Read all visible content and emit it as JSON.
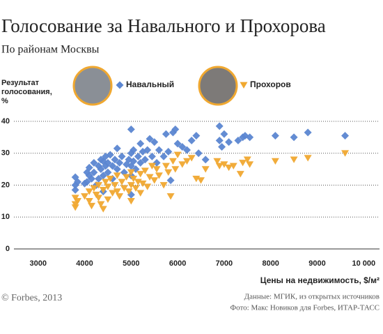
{
  "chart_data": {
    "type": "scatter",
    "title": "Голосование за Навального и Прохорова",
    "subtitle": "По районам Москвы",
    "y_label": "Результат голосования, %",
    "x_label": "Цены на недвижимость, $/м²",
    "footer_left": "© Forbes, 2013",
    "footer_right": [
      "Данные: МГИК, из открытых источников",
      "Фото: Макс Новиков для Forbes, ИТАР-ТАСС"
    ],
    "xlim": [
      2480,
      10340
    ],
    "ylim": [
      0,
      40
    ],
    "xticks": [
      3000,
      4000,
      5000,
      6000,
      7000,
      8000,
      9000,
      {
        "value": 10000,
        "label": "10 000"
      }
    ],
    "yticks": [
      0,
      10,
      20,
      30,
      40
    ],
    "grid": true,
    "series": [
      {
        "name": "Навальный",
        "color": "#5b86d1",
        "marker": "diamond",
        "x": [
          3800,
          3800,
          3800,
          3850,
          4000,
          4050,
          4050,
          4100,
          4100,
          4150,
          4200,
          4200,
          4250,
          4300,
          4300,
          4350,
          4350,
          4400,
          4400,
          4400,
          4450,
          4450,
          4500,
          4500,
          4550,
          4600,
          4600,
          4650,
          4700,
          4700,
          4750,
          4800,
          4850,
          4900,
          4950,
          5000,
          5000,
          5000,
          5000,
          5000,
          5050,
          5050,
          5100,
          5150,
          5200,
          5200,
          5250,
          5300,
          5350,
          5400,
          5450,
          5500,
          5550,
          5600,
          5700,
          5750,
          5800,
          5850,
          5900,
          5950,
          6000,
          6100,
          6200,
          6300,
          6400,
          6450,
          6600,
          6900,
          6900,
          6950,
          7000,
          7100,
          7300,
          7400,
          7450,
          7550,
          8100,
          8500,
          8800,
          9600
        ],
        "values": [
          22.5,
          20,
          18.5,
          21,
          20.5,
          24,
          21,
          23,
          25.5,
          22,
          27,
          24,
          20,
          26,
          22,
          28,
          25,
          27.5,
          23,
          18,
          26,
          29,
          24,
          27,
          29.5,
          26,
          22,
          28,
          31.5,
          25,
          27,
          29,
          24,
          26.5,
          28,
          37.5,
          30,
          26,
          23,
          17,
          31,
          27.5,
          25,
          29,
          33,
          27,
          30.5,
          28,
          31,
          34.5,
          29,
          33.5,
          27,
          31,
          29,
          36,
          30.5,
          21.5,
          36.5,
          37.5,
          33,
          32,
          31,
          34,
          35.5,
          30,
          28,
          38.5,
          34,
          32,
          36,
          33.5,
          34,
          35,
          35.5,
          35,
          35.5,
          35,
          36.5,
          35.5
        ]
      },
      {
        "name": "Прохоров",
        "color": "#f0a830",
        "marker": "triangle",
        "x": [
          3800,
          3800,
          3800,
          3850,
          4000,
          4100,
          4100,
          4150,
          4200,
          4250,
          4300,
          4300,
          4350,
          4400,
          4400,
          4450,
          4500,
          4500,
          4550,
          4600,
          4650,
          4700,
          4700,
          4750,
          4800,
          4850,
          4900,
          4950,
          5000,
          5000,
          5000,
          5050,
          5100,
          5150,
          5200,
          5200,
          5250,
          5300,
          5350,
          5400,
          5450,
          5500,
          5550,
          5600,
          5700,
          5750,
          5800,
          5850,
          5900,
          5950,
          6000,
          6100,
          6200,
          6300,
          6400,
          6500,
          6600,
          6850,
          6900,
          7000,
          7100,
          7200,
          7350,
          7400,
          7500,
          7550,
          8100,
          8500,
          8800,
          9600
        ],
        "values": [
          16,
          14,
          13,
          15,
          16.5,
          18,
          15,
          13.5,
          19,
          17,
          20,
          16,
          14,
          12.5,
          18.5,
          21,
          15.5,
          19.5,
          22,
          17.5,
          20,
          23,
          18,
          16.5,
          21,
          19,
          22.5,
          18,
          24,
          20,
          15,
          22,
          19,
          21,
          23.5,
          17.5,
          20.5,
          24.5,
          19.5,
          22.5,
          26,
          21.5,
          25,
          23,
          20,
          26,
          24,
          16.5,
          27.5,
          25,
          29.5,
          26.5,
          27.5,
          28.5,
          22,
          21.5,
          25,
          27.5,
          26,
          26.5,
          25.5,
          26,
          23.5,
          27,
          28,
          26.5,
          27.5,
          28,
          28.5,
          30
        ]
      }
    ]
  }
}
